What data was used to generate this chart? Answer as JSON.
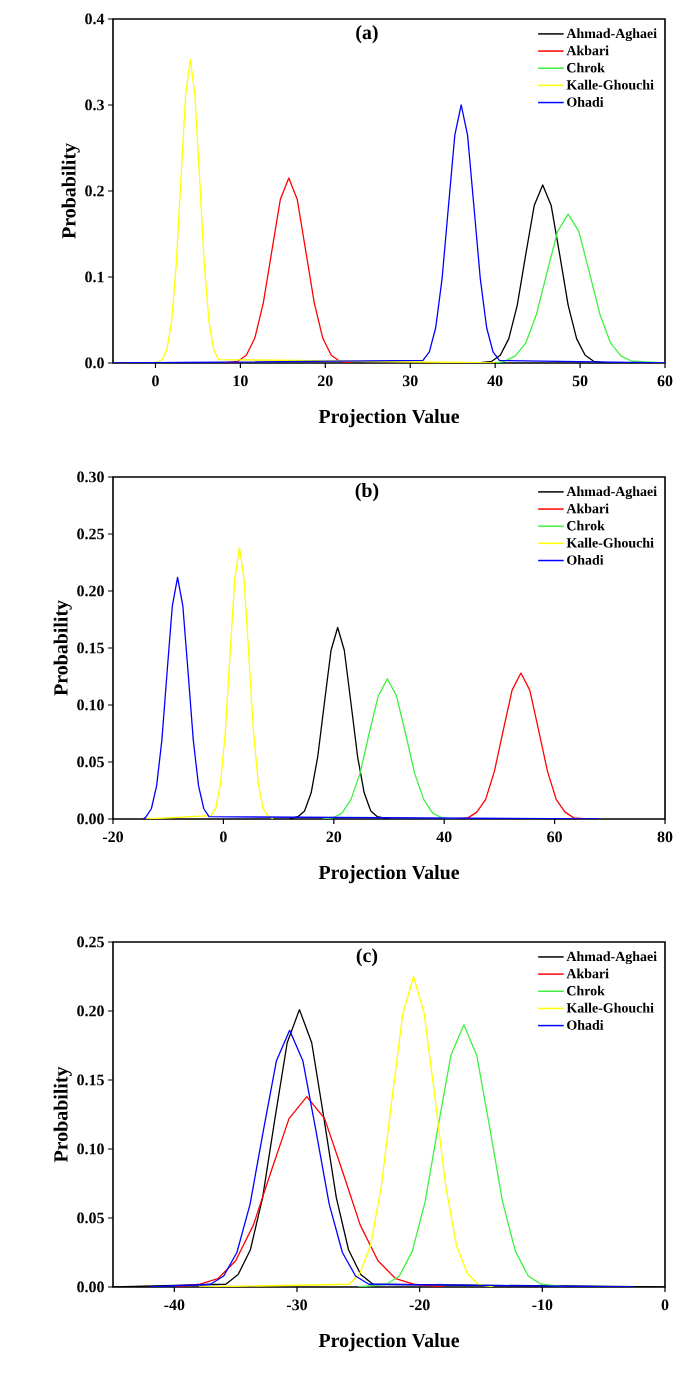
{
  "chart_data": [
    {
      "type": "line",
      "title": "(a)",
      "xlabel": "Projection Value",
      "ylabel": "Probability",
      "legend": "top right",
      "xlim": [
        -5,
        60
      ],
      "xticks": [
        0,
        10,
        20,
        30,
        40,
        50,
        60
      ],
      "ylim": [
        0,
        0.4
      ],
      "yticks": [
        {
          "value": 0,
          "label": "0.0"
        },
        {
          "value": 0.1,
          "label": "0.1"
        },
        {
          "value": 0.2,
          "label": "0.2"
        },
        {
          "value": 0.3,
          "label": "0.3"
        },
        {
          "value": 0.4,
          "label": "0.4"
        }
      ],
      "series": [
        {
          "name": "Ahmad-Aghaei",
          "color": "#000000",
          "x": [
            38,
            39.6,
            40.6,
            41.6,
            42.6,
            43.6,
            44.6,
            45.6,
            46.6,
            47.6,
            48.6,
            49.6,
            50.6,
            51.6,
            53
          ],
          "values": [
            0,
            0.002,
            0.009,
            0.028,
            0.067,
            0.126,
            0.183,
            0.207,
            0.183,
            0.126,
            0.067,
            0.028,
            0.009,
            0.002,
            0
          ]
        },
        {
          "name": "Akbari",
          "color": "#ff0000",
          "x": [
            8,
            9.7,
            10.7,
            11.7,
            12.7,
            13.7,
            14.7,
            15.7,
            16.7,
            17.7,
            18.7,
            19.7,
            20.7,
            21.7,
            23
          ],
          "values": [
            0,
            0.002,
            0.009,
            0.029,
            0.07,
            0.13,
            0.19,
            0.215,
            0.19,
            0.13,
            0.07,
            0.029,
            0.009,
            0.002,
            0
          ]
        },
        {
          "name": "Chrok",
          "color": "#40f040",
          "x": [
            40,
            41.1,
            42.35,
            43.6,
            44.85,
            46.1,
            47.35,
            48.6,
            49.85,
            51.1,
            52.35,
            53.6,
            54.85,
            56.1,
            60
          ],
          "values": [
            0,
            0.002,
            0.008,
            0.023,
            0.056,
            0.105,
            0.153,
            0.173,
            0.153,
            0.105,
            0.056,
            0.023,
            0.008,
            0.002,
            0
          ]
        },
        {
          "name": "Kalle-Ghouchi",
          "color": "#ffff00",
          "x": [
            0,
            0.8,
            1.35,
            1.9,
            2.45,
            3.0,
            3.55,
            4.1,
            4.65,
            5.2,
            5.75,
            6.3,
            6.85,
            7.4,
            40
          ],
          "values": [
            0,
            0.004,
            0.016,
            0.048,
            0.115,
            0.214,
            0.311,
            0.353,
            0.311,
            0.214,
            0.115,
            0.048,
            0.016,
            0.004,
            0
          ]
        },
        {
          "name": "Ohadi",
          "color": "#0000ff",
          "x": [
            -5,
            31.5,
            32.25,
            33,
            33.75,
            34.5,
            35.25,
            36,
            36.75,
            37.5,
            38.25,
            39,
            39.75,
            40.5,
            60
          ],
          "values": [
            0,
            0.003,
            0.013,
            0.041,
            0.098,
            0.182,
            0.265,
            0.3,
            0.265,
            0.182,
            0.098,
            0.041,
            0.013,
            0.003,
            0
          ]
        }
      ]
    },
    {
      "type": "line",
      "title": "(b)",
      "xlabel": "Projection Value",
      "ylabel": "Probability",
      "legend": "top right",
      "xlim": [
        -20,
        80
      ],
      "xticks": [
        -20,
        0,
        20,
        40,
        60,
        80
      ],
      "ylim": [
        0,
        0.3
      ],
      "yticks": [
        {
          "value": 0,
          "label": "0.00"
        },
        {
          "value": 0.05,
          "label": "0.05"
        },
        {
          "value": 0.1,
          "label": "0.10"
        },
        {
          "value": 0.15,
          "label": "0.15"
        },
        {
          "value": 0.2,
          "label": "0.20"
        },
        {
          "value": 0.25,
          "label": "0.25"
        },
        {
          "value": 0.3,
          "label": "0.30"
        }
      ],
      "series": [
        {
          "name": "Ahmad-Aghaei",
          "color": "#000000",
          "x": [
            12,
            13.5,
            14.7,
            15.9,
            17.1,
            18.3,
            19.5,
            20.7,
            21.9,
            23.1,
            24.3,
            25.5,
            26.7,
            27.9,
            30
          ],
          "values": [
            0,
            0.002,
            0.007,
            0.023,
            0.055,
            0.102,
            0.148,
            0.168,
            0.148,
            0.102,
            0.055,
            0.023,
            0.007,
            0.002,
            0
          ]
        },
        {
          "name": "Akbari",
          "color": "#ff0000",
          "x": [
            42,
            44.3,
            45.9,
            47.5,
            49.1,
            50.7,
            52.3,
            53.9,
            55.5,
            57.1,
            58.7,
            60.3,
            61.9,
            63.5,
            66
          ],
          "values": [
            0,
            0.001,
            0.006,
            0.017,
            0.042,
            0.078,
            0.113,
            0.128,
            0.113,
            0.078,
            0.042,
            0.017,
            0.006,
            0.001,
            0
          ]
        },
        {
          "name": "Chrok",
          "color": "#40f040",
          "x": [
            18,
            19.8,
            21.45,
            23.1,
            24.75,
            26.4,
            28.05,
            29.7,
            31.35,
            33,
            34.65,
            36.3,
            37.95,
            39.6,
            42
          ],
          "values": [
            0,
            0.001,
            0.005,
            0.017,
            0.04,
            0.075,
            0.108,
            0.123,
            0.108,
            0.075,
            0.04,
            0.017,
            0.005,
            0.001,
            0
          ]
        },
        {
          "name": "Kalle-Ghouchi",
          "color": "#ffff00",
          "x": [
            -14,
            -2.2,
            -1.35,
            -0.5,
            0.35,
            1.2,
            2.05,
            2.9,
            3.75,
            4.6,
            5.45,
            6.3,
            7.15,
            8.0,
            9
          ],
          "values": [
            0,
            0.003,
            0.01,
            0.032,
            0.077,
            0.144,
            0.21,
            0.238,
            0.21,
            0.144,
            0.077,
            0.032,
            0.01,
            0.003,
            0
          ]
        },
        {
          "name": "Ohadi",
          "color": "#0000ff",
          "x": [
            -14.5,
            -14.0,
            -13.05,
            -12.1,
            -11.15,
            -10.2,
            -9.25,
            -8.3,
            -7.35,
            -6.4,
            -5.45,
            -4.5,
            -3.55,
            -2.6,
            68
          ],
          "values": [
            0,
            0.002,
            0.009,
            0.029,
            0.069,
            0.129,
            0.187,
            0.212,
            0.187,
            0.129,
            0.069,
            0.029,
            0.009,
            0.002,
            0
          ]
        }
      ]
    },
    {
      "type": "line",
      "title": "(c)",
      "xlabel": "Projection Value",
      "ylabel": "Probability",
      "legend": "top right",
      "xlim": [
        -45,
        0
      ],
      "xticks": [
        -40,
        -30,
        -20,
        -10,
        0
      ],
      "ylim": [
        0,
        0.25
      ],
      "yticks": [
        {
          "value": 0,
          "label": "0.00"
        },
        {
          "value": 0.05,
          "label": "0.05"
        },
        {
          "value": 0.1,
          "label": "0.10"
        },
        {
          "value": 0.15,
          "label": "0.15"
        },
        {
          "value": 0.2,
          "label": "0.20"
        },
        {
          "value": 0.25,
          "label": "0.25"
        }
      ],
      "series": [
        {
          "name": "Ahmad-Aghaei",
          "color": "#000000",
          "x": [
            -45,
            -35.8,
            -34.8,
            -33.8,
            -32.8,
            -31.8,
            -30.8,
            -29.8,
            -28.8,
            -27.8,
            -26.8,
            -25.8,
            -24.8,
            -23.8,
            0
          ],
          "values": [
            0,
            0.002,
            0.009,
            0.027,
            0.065,
            0.122,
            0.177,
            0.201,
            0.177,
            0.122,
            0.065,
            0.027,
            0.009,
            0.002,
            0
          ]
        },
        {
          "name": "Akbari",
          "color": "#ff0000",
          "x": [
            -40,
            -37.9,
            -36.45,
            -35,
            -33.55,
            -32.1,
            -30.65,
            -29.2,
            -27.75,
            -26.3,
            -24.85,
            -23.4,
            -21.95,
            -20.5,
            -18
          ],
          "values": [
            0,
            0.002,
            0.006,
            0.019,
            0.045,
            0.084,
            0.122,
            0.138,
            0.122,
            0.084,
            0.045,
            0.019,
            0.006,
            0.002,
            0
          ]
        },
        {
          "name": "Chrok",
          "color": "#40f040",
          "x": [
            -25,
            -22.7,
            -21.65,
            -20.6,
            -19.55,
            -18.5,
            -17.45,
            -16.4,
            -15.35,
            -14.3,
            -13.25,
            -12.2,
            -11.15,
            -10.1,
            -8
          ],
          "values": [
            0,
            0.002,
            0.008,
            0.026,
            0.062,
            0.116,
            0.168,
            0.19,
            0.168,
            0.116,
            0.062,
            0.026,
            0.008,
            0.002,
            0
          ]
        },
        {
          "name": "Kalle-Ghouchi",
          "color": "#ffff00",
          "x": [
            -38,
            -25.75,
            -24.875,
            -24,
            -23.125,
            -22.25,
            -21.375,
            -20.5,
            -19.625,
            -18.75,
            -17.875,
            -17,
            -16.125,
            -15.25,
            -14
          ],
          "values": [
            0,
            0.002,
            0.01,
            0.03,
            0.073,
            0.137,
            0.198,
            0.225,
            0.198,
            0.137,
            0.073,
            0.03,
            0.01,
            0.002,
            0
          ]
        },
        {
          "name": "Ohadi",
          "color": "#0000ff",
          "x": [
            -42,
            -37.05,
            -35.975,
            -34.9,
            -33.825,
            -32.75,
            -31.675,
            -30.6,
            -29.525,
            -28.45,
            -27.375,
            -26.3,
            -25.225,
            -24.15,
            -2.5
          ],
          "values": [
            0,
            0.002,
            0.008,
            0.025,
            0.06,
            0.113,
            0.164,
            0.186,
            0.164,
            0.113,
            0.06,
            0.025,
            0.008,
            0.002,
            0
          ]
        }
      ]
    }
  ]
}
